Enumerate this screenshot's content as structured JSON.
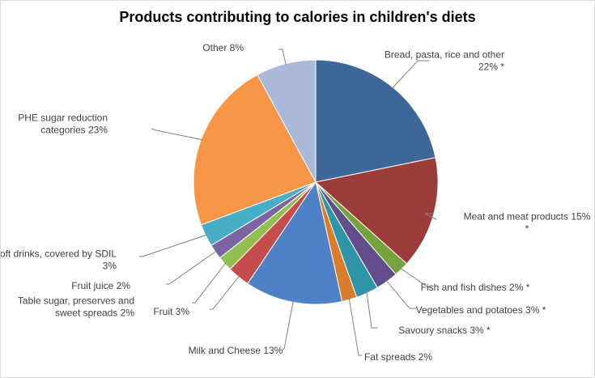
{
  "chart_data": {
    "type": "pie",
    "title": "Products contributing to calories in children's diets",
    "slices": [
      {
        "label": "Bread, pasta, rice and other",
        "value": 22,
        "label_lines": [
          "Bread, pasta, rice and other",
          "22% *"
        ],
        "color": "#3d6699"
      },
      {
        "label": "Meat and meat products",
        "value": 15,
        "label_lines": [
          "Meat and meat products 15%",
          "*"
        ],
        "color": "#9c3c3a"
      },
      {
        "label": "Fish and fish dishes",
        "value": 2,
        "label_lines": [
          "Fish and fish dishes 2% *"
        ],
        "color": "#77a33f"
      },
      {
        "label": "Vegetables and potatoes",
        "value": 3,
        "label_lines": [
          "Vegetables and potatoes 3% *"
        ],
        "color": "#634d8c"
      },
      {
        "label": "Savoury snacks",
        "value": 3,
        "label_lines": [
          "Savoury snacks 3% *"
        ],
        "color": "#2f94a7"
      },
      {
        "label": "Fat spreads",
        "value": 2,
        "label_lines": [
          "Fat spreads 2%"
        ],
        "color": "#da7c29"
      },
      {
        "label": "Milk and Cheese",
        "value": 13,
        "label_lines": [
          "Milk and Cheese 13%"
        ],
        "color": "#4f81c7"
      },
      {
        "label": "Fruit",
        "value": 3,
        "label_lines": [
          "Fruit 3%"
        ],
        "color": "#c44d4c"
      },
      {
        "label": "Table sugar, preserves and sweet spreads",
        "value": 2,
        "label_lines": [
          "Table sugar, preserves and",
          "sweet spreads 2%"
        ],
        "color": "#92c050"
      },
      {
        "label": "Fruit juice",
        "value": 2,
        "label_lines": [
          "Fruit juice 2%"
        ],
        "color": "#7c64a2"
      },
      {
        "label": "Soft drinks, covered by SDIL",
        "value": 3,
        "label_lines": [
          "Soft drinks, covered by SDIL",
          "3%"
        ],
        "color": "#46aec6"
      },
      {
        "label": "PHE sugar reduction categories",
        "value": 23,
        "label_lines": [
          "PHE sugar reduction",
          "categories 23%"
        ],
        "color": "#f79646"
      },
      {
        "label": "Other",
        "value": 8,
        "label_lines": [
          "Other 8%"
        ],
        "color": "#a9b9d7"
      }
    ],
    "start_position": "12 o'clock, clockwise",
    "legend": "none",
    "data_labels": "outside with leader lines"
  }
}
